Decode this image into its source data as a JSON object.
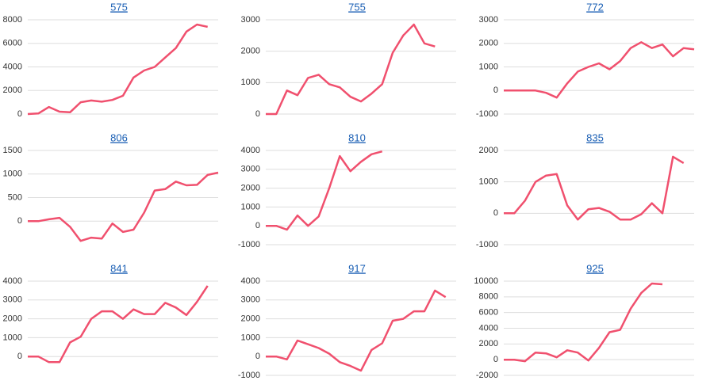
{
  "chart_data": [
    {
      "type": "line",
      "title": "575",
      "color": "#f0506e",
      "values": [
        0,
        50,
        600,
        200,
        150,
        1000,
        1150,
        1050,
        1200,
        1550,
        3100,
        3700,
        4000,
        4800,
        5600,
        7000,
        7600,
        7400
      ],
      "ylim": [
        0,
        8000
      ],
      "yticks": [
        0,
        2000,
        4000,
        6000,
        8000
      ]
    },
    {
      "type": "line",
      "title": "755",
      "color": "#f0506e",
      "values": [
        0,
        0,
        750,
        600,
        1150,
        1250,
        950,
        850,
        550,
        400,
        650,
        950,
        1950,
        2500,
        2850,
        2250,
        2150
      ],
      "ylim": [
        0,
        3000
      ],
      "yticks": [
        0,
        1000,
        2000,
        3000
      ]
    },
    {
      "type": "line",
      "title": "772",
      "color": "#f0506e",
      "values": [
        0,
        0,
        0,
        0,
        -100,
        -300,
        300,
        800,
        1000,
        1150,
        900,
        1250,
        1800,
        2050,
        1800,
        1950,
        1450,
        1800,
        1750
      ],
      "ylim": [
        -1000,
        3000
      ],
      "yticks": [
        -1000,
        0,
        1000,
        2000,
        3000
      ]
    },
    {
      "type": "line",
      "title": "806",
      "color": "#f0506e",
      "values": [
        0,
        0,
        40,
        70,
        -120,
        -420,
        -350,
        -370,
        -50,
        -230,
        -180,
        180,
        650,
        680,
        840,
        760,
        770,
        980,
        1030
      ],
      "ylim": [
        -500,
        1500
      ],
      "yticks": [
        0,
        500,
        1000,
        1500
      ]
    },
    {
      "type": "line",
      "title": "810",
      "color": "#f0506e",
      "values": [
        0,
        0,
        -200,
        550,
        0,
        500,
        2000,
        3700,
        2900,
        3400,
        3800,
        3950
      ],
      "ylim": [
        -1000,
        4000
      ],
      "yticks": [
        -1000,
        0,
        1000,
        2000,
        3000,
        4000
      ]
    },
    {
      "type": "line",
      "title": "835",
      "color": "#f0506e",
      "values": [
        0,
        0,
        400,
        1000,
        1200,
        1250,
        250,
        -200,
        130,
        170,
        50,
        -200,
        -200,
        -30,
        320,
        0,
        1800,
        1600
      ],
      "ylim": [
        -1000,
        2000
      ],
      "yticks": [
        -1000,
        0,
        1000,
        2000
      ]
    },
    {
      "type": "line",
      "title": "841",
      "color": "#f0506e",
      "values": [
        0,
        0,
        -300,
        -300,
        750,
        1050,
        2000,
        2400,
        2400,
        2000,
        2500,
        2250,
        2250,
        2850,
        2600,
        2200,
        2900,
        3750
      ],
      "ylim": [
        -1000,
        4000
      ],
      "yticks": [
        0,
        1000,
        2000,
        3000,
        4000
      ]
    },
    {
      "type": "line",
      "title": "917",
      "color": "#f0506e",
      "values": [
        0,
        0,
        -150,
        850,
        650,
        450,
        150,
        -300,
        -500,
        -750,
        350,
        700,
        1900,
        2000,
        2400,
        2400,
        3500,
        3150
      ],
      "ylim": [
        -1000,
        4000
      ],
      "yticks": [
        -1000,
        0,
        1000,
        2000,
        3000,
        4000
      ]
    },
    {
      "type": "line",
      "title": "925",
      "color": "#f0506e",
      "values": [
        0,
        0,
        -200,
        900,
        800,
        300,
        1200,
        900,
        -100,
        1500,
        3500,
        3800,
        6500,
        8500,
        9700,
        9600
      ],
      "ylim": [
        -2000,
        10000
      ],
      "yticks": [
        -2000,
        0,
        2000,
        4000,
        6000,
        8000,
        10000
      ]
    }
  ]
}
